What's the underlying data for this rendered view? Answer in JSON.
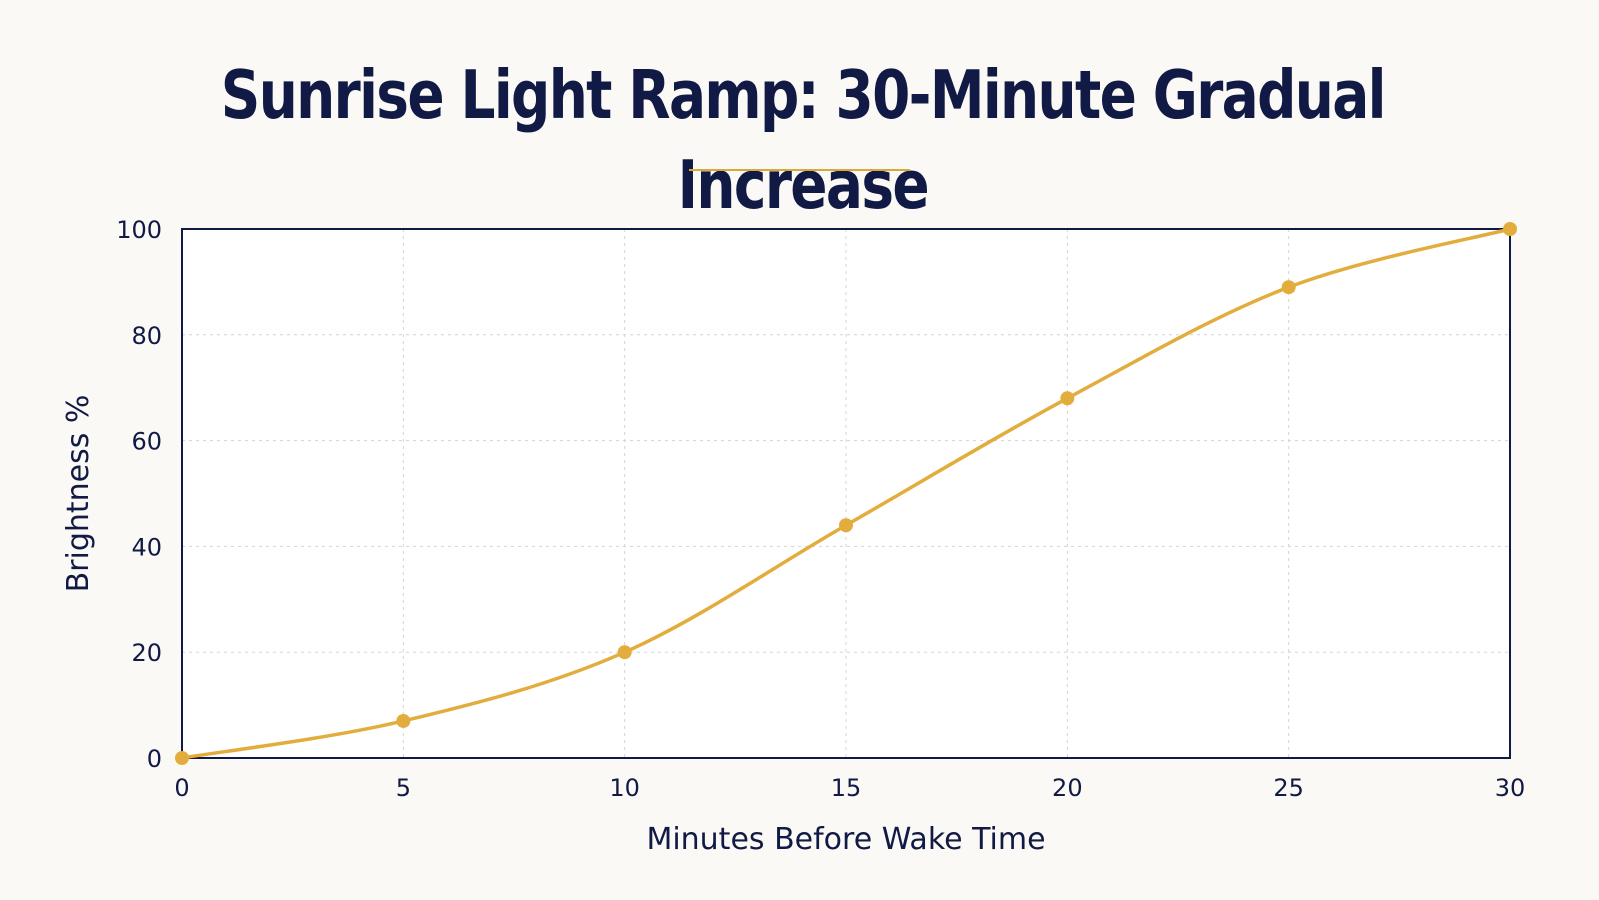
{
  "colors": {
    "background": "#fbf9f5",
    "plot_background": "#ffffff",
    "axis": "#111a45",
    "grid": "#d4d4d4",
    "series": "#e2ad3c",
    "accent_rule": "#d9a93a"
  },
  "chart_data": {
    "type": "line",
    "title": "Sunrise Light Ramp: 30-Minute Gradual Increase",
    "xlabel": "Minutes Before Wake Time",
    "ylabel": "Brightness %",
    "xlim": [
      0,
      30
    ],
    "ylim": [
      0,
      100
    ],
    "xticks": [
      0,
      5,
      10,
      15,
      20,
      25,
      30
    ],
    "yticks": [
      0,
      20,
      40,
      60,
      80,
      100
    ],
    "grid": true,
    "smooth": true,
    "markers": true,
    "series": [
      {
        "x": [
          0,
          5,
          10,
          15,
          20,
          25,
          30
        ],
        "y": [
          0,
          7,
          20,
          44,
          68,
          89,
          100
        ]
      }
    ]
  }
}
